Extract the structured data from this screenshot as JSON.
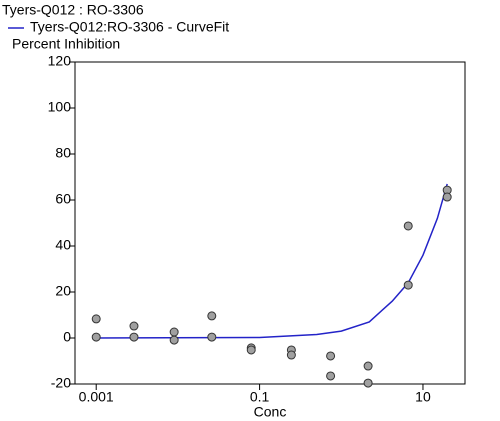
{
  "chart_data": {
    "type": "scatter",
    "title": "Tyers-Q012 : RO-3306",
    "y_label": "Percent Inhibition",
    "x_label": "Conc",
    "log_x": true,
    "xlim": [
      0.00055,
      32.7
    ],
    "xticks": [
      0.001,
      0.1,
      10
    ],
    "ylim": [
      -20,
      120
    ],
    "yticks": [
      -20,
      0,
      20,
      40,
      60,
      80,
      100,
      120
    ],
    "points": {
      "color": "#a0a0a0",
      "x": [
        0.001,
        0.001,
        0.0029,
        0.0029,
        0.009,
        0.009,
        0.026,
        0.026,
        0.079,
        0.079,
        0.245,
        0.245,
        0.74,
        0.74,
        2.13,
        2.13,
        6.6,
        6.6,
        19.8,
        19.8
      ],
      "values": [
        8.3,
        0.4,
        5.2,
        0.4,
        2.6,
        -0.9,
        9.6,
        0.4,
        -4.3,
        -5.2,
        -5.2,
        -7.4,
        -7.8,
        -16.5,
        -12.2,
        -19.6,
        48.7,
        23,
        64.3,
        61.3
      ]
    },
    "curve": {
      "name": "Tyers-Q012:RO-3306 - CurveFit",
      "color": "#2323c8",
      "x": [
        0.001,
        0.1,
        0.5,
        1,
        2.2,
        4.2,
        6.6,
        10,
        15,
        19.8
      ],
      "values": [
        0,
        0.2,
        1.5,
        3,
        7,
        16,
        24,
        36,
        52,
        67
      ]
    }
  }
}
